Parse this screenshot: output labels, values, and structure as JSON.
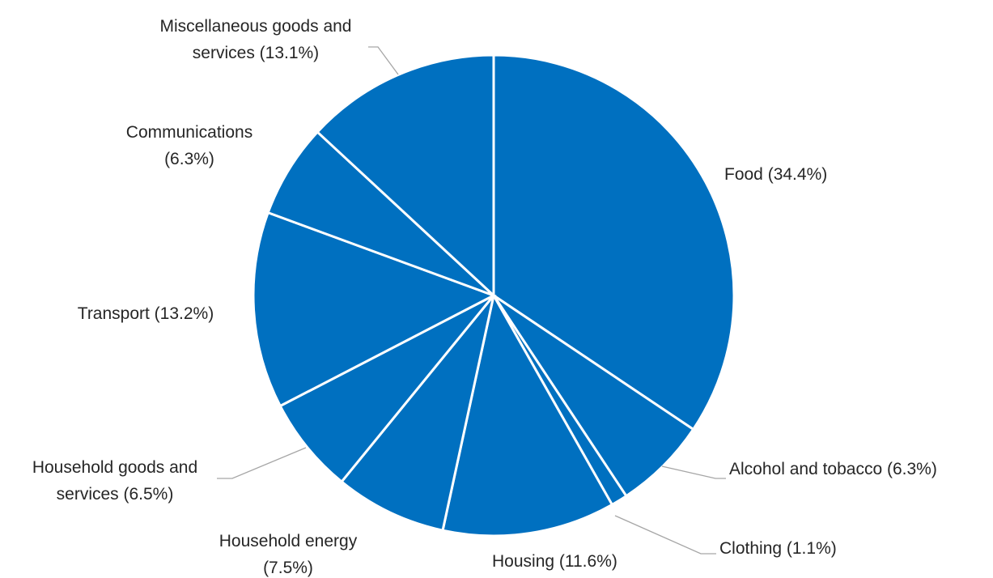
{
  "colors": {
    "slice_fill": "#0070c0",
    "slice_border": "#ffffff",
    "leader_line": "#a6a6a6",
    "label_text": "#262626"
  },
  "chart_data": {
    "type": "pie",
    "start_angle_deg": 0,
    "direction": "clockwise",
    "slices": [
      {
        "category": "Food",
        "value": 34.4,
        "label_lines": [
          "Food (34.4%)"
        ]
      },
      {
        "category": "Alcohol and tobacco",
        "value": 6.3,
        "label_lines": [
          "Alcohol and tobacco (6.3%)"
        ]
      },
      {
        "category": "Clothing",
        "value": 1.1,
        "label_lines": [
          "Clothing (1.1%)"
        ]
      },
      {
        "category": "Housing",
        "value": 11.6,
        "label_lines": [
          "Housing (11.6%)"
        ]
      },
      {
        "category": "Household energy",
        "value": 7.5,
        "label_lines": [
          "Household energy",
          "(7.5%)"
        ]
      },
      {
        "category": "Household goods and services",
        "value": 6.5,
        "label_lines": [
          "Household goods and",
          "services (6.5%)"
        ]
      },
      {
        "category": "Transport",
        "value": 13.2,
        "label_lines": [
          "Transport (13.2%)"
        ]
      },
      {
        "category": "Communications",
        "value": 6.3,
        "label_lines": [
          "Communications",
          "(6.3%)"
        ]
      },
      {
        "category": "Miscellaneous goods and services",
        "value": 13.1,
        "label_lines": [
          "Miscellaneous goods and",
          "services (13.1%)"
        ]
      }
    ]
  }
}
